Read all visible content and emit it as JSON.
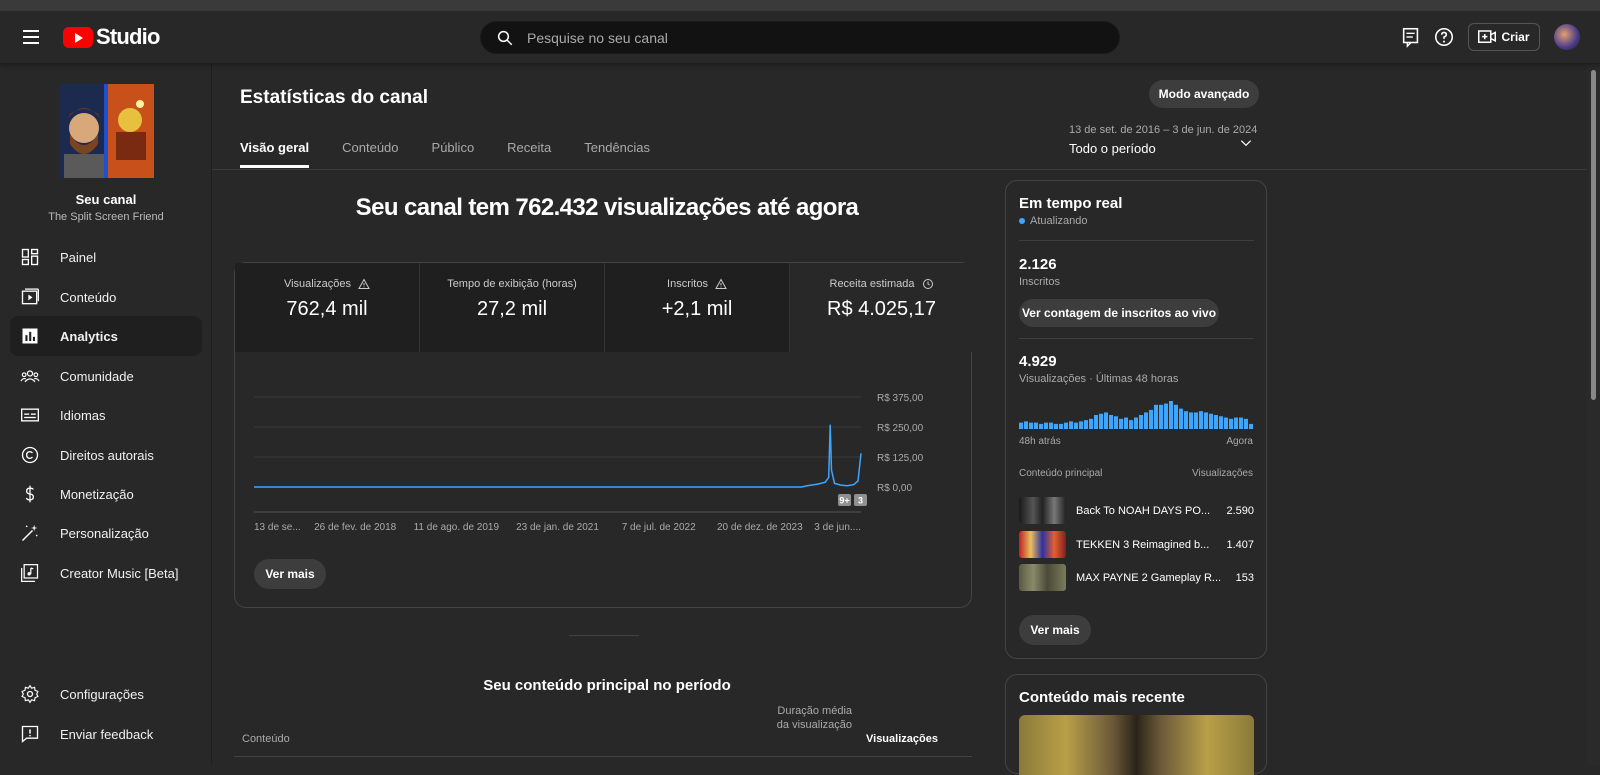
{
  "header": {
    "logo_text": "Studio",
    "search_placeholder": "Pesquise no seu canal",
    "create_label": "Criar"
  },
  "sidebar": {
    "channel_name": "Seu canal",
    "channel_handle": "The Split Screen Friend",
    "items": [
      {
        "label": "Painel",
        "icon": "dashboard-icon"
      },
      {
        "label": "Conteúdo",
        "icon": "content-icon"
      },
      {
        "label": "Analytics",
        "icon": "analytics-icon",
        "active": true
      },
      {
        "label": "Comunidade",
        "icon": "community-icon"
      },
      {
        "label": "Idiomas",
        "icon": "subtitles-icon"
      },
      {
        "label": "Direitos autorais",
        "icon": "copyright-icon"
      },
      {
        "label": "Monetização",
        "icon": "dollar-icon"
      },
      {
        "label": "Personalização",
        "icon": "magic-wand-icon"
      },
      {
        "label": "Creator Music [Beta]",
        "icon": "music-icon"
      }
    ],
    "bottom_items": [
      {
        "label": "Configurações",
        "icon": "gear-icon"
      },
      {
        "label": "Enviar feedback",
        "icon": "feedback-icon"
      }
    ]
  },
  "main": {
    "title": "Estatísticas do canal",
    "advanced_mode": "Modo avançado",
    "tabs": [
      "Visão geral",
      "Conteúdo",
      "Público",
      "Receita",
      "Tendências"
    ],
    "period_range": "13 de set. de 2016 – 3 de jun. de 2024",
    "period_label": "Todo o período",
    "headline": "Seu canal tem 762.432 visualizações até agora",
    "metrics": [
      {
        "title": "Visualizações",
        "value": "762,4 mil",
        "icon": "warning-icon"
      },
      {
        "title": "Tempo de exibição (horas)",
        "value": "27,2 mil"
      },
      {
        "title": "Inscritos",
        "value": "+2,1 mil",
        "icon": "warning-icon"
      },
      {
        "title": "Receita estimada",
        "value": "R$ 4.025,17",
        "icon": "clock-icon"
      }
    ],
    "see_more": "Ver mais",
    "top_content_title": "Seu conteúdo principal no período",
    "table_headers": {
      "content": "Conteúdo",
      "avg_duration": "Duração média da visualização",
      "views": "Visualizações"
    }
  },
  "chart_data": {
    "type": "line",
    "series": [
      {
        "name": "Receita estimada"
      }
    ],
    "y_ticks": [
      "R$ 0,00",
      "R$ 125,00",
      "R$ 250,00",
      "R$ 375,00"
    ],
    "ylim": [
      0,
      375
    ],
    "x_ticks": [
      "13 de se...",
      "26 de fev. de 2018",
      "11 de ago. de 2019",
      "23 de jan. de 2021",
      "7 de jul. de 2022",
      "20 de dez. de 2023",
      "3 de jun...."
    ],
    "x_range": [
      "2016-09-13",
      "2024-06-03"
    ],
    "points": [
      [
        "2016-09-13",
        0
      ],
      [
        "2023-09-01",
        0
      ],
      [
        "2023-10-01",
        6
      ],
      [
        "2023-11-15",
        12
      ],
      [
        "2023-12-20",
        20
      ],
      [
        "2024-01-05",
        40
      ],
      [
        "2024-01-12",
        260
      ],
      [
        "2024-01-18",
        70
      ],
      [
        "2024-02-01",
        15
      ],
      [
        "2024-03-01",
        8
      ],
      [
        "2024-04-01",
        5
      ],
      [
        "2024-05-01",
        10
      ],
      [
        "2024-05-20",
        25
      ],
      [
        "2024-06-03",
        140
      ]
    ],
    "markers": [
      "9+",
      "3"
    ]
  },
  "realtime": {
    "title": "Em tempo real",
    "status": "Atualizando",
    "subscribers_value": "2.126",
    "subscribers_label": "Inscritos",
    "live_button": "Ver contagem de inscritos ao vivo",
    "views_value": "4.929",
    "views_label": "Visualizações · Últimas 48 horas",
    "bars": [
      5,
      6,
      5,
      5,
      4,
      5,
      5,
      4,
      4,
      5,
      6,
      5,
      6,
      7,
      8,
      11,
      12,
      13,
      11,
      10,
      8,
      9,
      7,
      9,
      11,
      13,
      15,
      19,
      19,
      20,
      22,
      19,
      16,
      14,
      13,
      13,
      14,
      13,
      12,
      11,
      10,
      9,
      8,
      9,
      9,
      8,
      4
    ],
    "axis_start": "48h atrás",
    "axis_end": "Agora",
    "col_content": "Conteúdo principal",
    "col_views": "Visualizações",
    "rows": [
      {
        "title": "Back To NOAH DAYS PO...",
        "views": "2.590"
      },
      {
        "title": "TEKKEN 3 Reimagined b...",
        "views": "1.407"
      },
      {
        "title": "MAX PAYNE 2 Gameplay R...",
        "views": "153"
      }
    ],
    "see_more": "Ver mais"
  },
  "recent": {
    "title": "Conteúdo mais recente"
  }
}
